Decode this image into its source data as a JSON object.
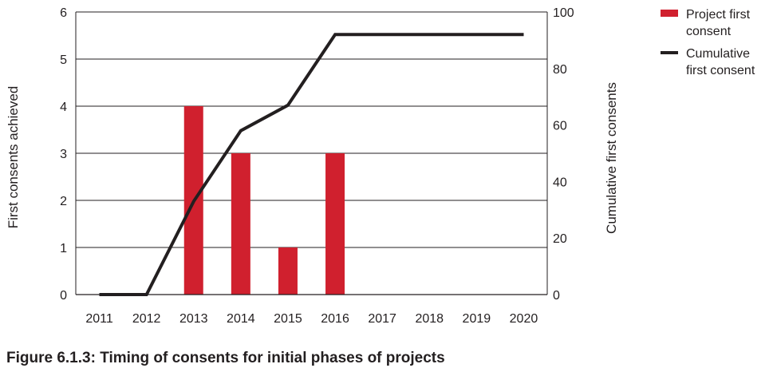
{
  "colors": {
    "bar": "#d0202e",
    "line": "#231f20",
    "grid": "#231f20"
  },
  "chart_data": {
    "type": "bar",
    "categories": [
      "2011",
      "2012",
      "2013",
      "2014",
      "2015",
      "2016",
      "2017",
      "2018",
      "2019",
      "2020"
    ],
    "series": [
      {
        "name": "Project first consent",
        "type": "bar",
        "axis": "left",
        "values": [
          0,
          0,
          4,
          3,
          1,
          3,
          0,
          0,
          0,
          0
        ]
      },
      {
        "name": "Cumulative first consent",
        "type": "line",
        "axis": "right",
        "values": [
          0,
          0,
          33,
          58,
          67,
          92,
          92,
          92,
          92,
          92
        ]
      }
    ],
    "ylabel": "First consents achieved",
    "ylabel_right": "Cumulative first consents",
    "ylim": [
      0,
      6
    ],
    "ylim_right": [
      0,
      100
    ],
    "yticks": [
      "0",
      "1",
      "2",
      "3",
      "4",
      "5",
      "6"
    ],
    "yticks_right": [
      "0",
      "20",
      "40",
      "60",
      "80",
      "100"
    ],
    "grid": true,
    "legend_position": "top-right"
  },
  "legend": [
    {
      "label": "Project first consent",
      "kind": "bar"
    },
    {
      "label": "Cumulative first consent",
      "kind": "line"
    }
  ],
  "caption": "Figure 6.1.3: Timing of consents for initial phases of projects"
}
